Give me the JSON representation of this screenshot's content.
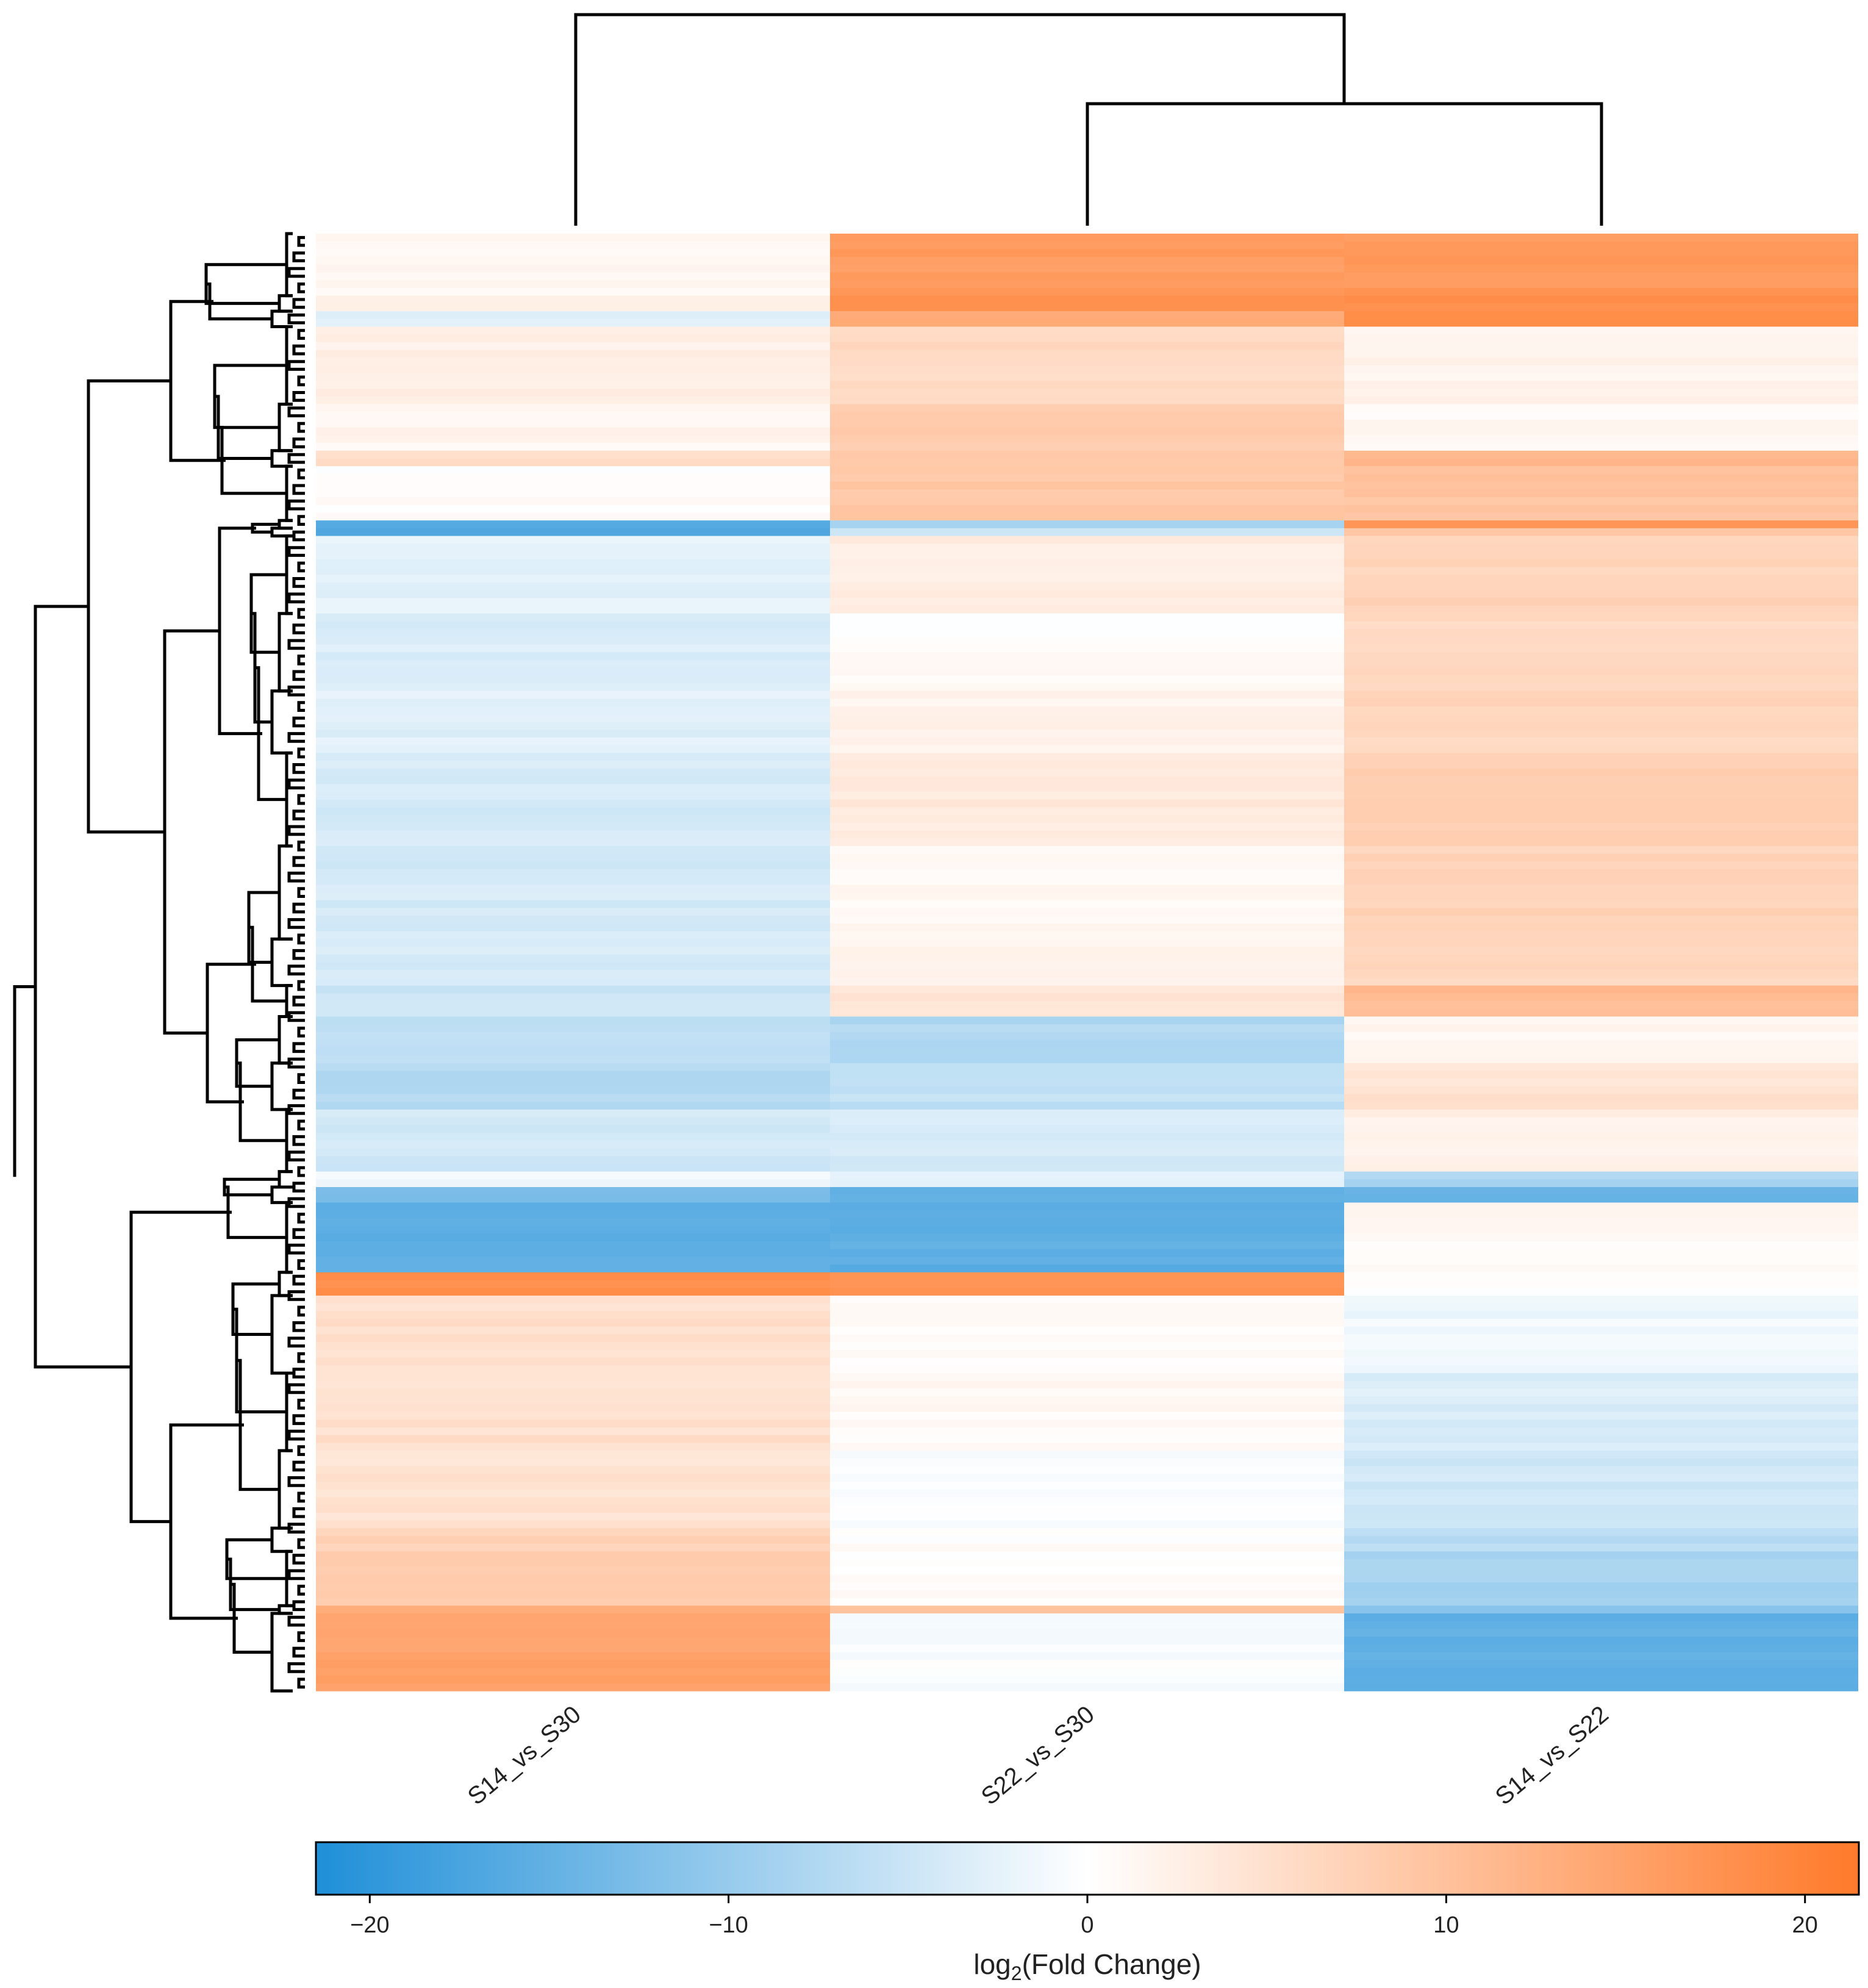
{
  "chart_data": {
    "type": "heatmap",
    "columns": [
      "S14_vs_S30",
      "S22_vs_S30",
      "S14_vs_S22"
    ],
    "colorbar": {
      "label_main": "log",
      "label_sub": "2",
      "label_rest": "(Fold Change)",
      "ticks": [
        -20,
        -10,
        0,
        10,
        20
      ],
      "tick_labels": [
        "−20",
        "−10",
        "0",
        "10",
        "20"
      ],
      "range": [
        -21.5,
        21.5
      ],
      "low_color": "#1f8fd8",
      "mid_color": "#ffffff",
      "high_color": "#ff7a2a"
    },
    "column_dendrogram": "S14_vs_S30 joins (S22_vs_S30, S14_vs_S22)",
    "row_blocks": [
      {
        "rows": 8,
        "values": [
          1.5,
          16.0,
          16.5
        ]
      },
      {
        "rows": 2,
        "values": [
          3.0,
          18.0,
          17.5
        ]
      },
      {
        "rows": 2,
        "values": [
          -3.5,
          14.0,
          19.0
        ]
      },
      {
        "rows": 10,
        "values": [
          2.5,
          6.0,
          2.0
        ]
      },
      {
        "rows": 6,
        "values": [
          1.5,
          8.0,
          1.0
        ]
      },
      {
        "rows": 2,
        "values": [
          5.5,
          9.0,
          11.0
        ]
      },
      {
        "rows": 7,
        "values": [
          0.5,
          9.0,
          9.5
        ]
      },
      {
        "rows": 1,
        "values": [
          -17.0,
          -8.0,
          18.0
        ]
      },
      {
        "rows": 1,
        "values": [
          -16.0,
          -4.0,
          9.0
        ]
      },
      {
        "rows": 10,
        "values": [
          -2.5,
          3.0,
          7.0
        ]
      },
      {
        "rows": 10,
        "values": [
          -3.5,
          0.5,
          6.0
        ]
      },
      {
        "rows": 8,
        "values": [
          -3.0,
          2.0,
          6.5
        ]
      },
      {
        "rows": 12,
        "values": [
          -4.0,
          3.5,
          8.0
        ]
      },
      {
        "rows": 12,
        "values": [
          -4.0,
          1.0,
          7.0
        ]
      },
      {
        "rows": 6,
        "values": [
          -4.0,
          2.0,
          6.5
        ]
      },
      {
        "rows": 4,
        "values": [
          -5.0,
          4.0,
          11.0
        ]
      },
      {
        "rows": 6,
        "values": [
          -6.0,
          -7.5,
          1.5
        ]
      },
      {
        "rows": 6,
        "values": [
          -7.0,
          -6.0,
          4.5
        ]
      },
      {
        "rows": 8,
        "values": [
          -4.5,
          -4.0,
          2.5
        ]
      },
      {
        "rows": 2,
        "values": [
          -1.0,
          -2.5,
          -8.0
        ]
      },
      {
        "rows": 2,
        "values": [
          -12.0,
          -14.5,
          -14.0
        ]
      },
      {
        "rows": 9,
        "values": [
          -15.5,
          -15.5,
          1.0
        ]
      },
      {
        "rows": 3,
        "values": [
          18.0,
          18.0,
          0.5
        ]
      },
      {
        "rows": 10,
        "values": [
          5.0,
          0.5,
          -1.5
        ]
      },
      {
        "rows": 10,
        "values": [
          5.0,
          1.0,
          -3.5
        ]
      },
      {
        "rows": 10,
        "values": [
          4.5,
          -0.5,
          -4.5
        ]
      },
      {
        "rows": 3,
        "values": [
          7.0,
          0.5,
          -7.0
        ]
      },
      {
        "rows": 7,
        "values": [
          8.0,
          0.3,
          -8.5
        ]
      },
      {
        "rows": 1,
        "values": [
          14.0,
          10.0,
          -11.0
        ]
      },
      {
        "rows": 10,
        "values": [
          15.0,
          -0.5,
          -15.0
        ]
      }
    ]
  }
}
